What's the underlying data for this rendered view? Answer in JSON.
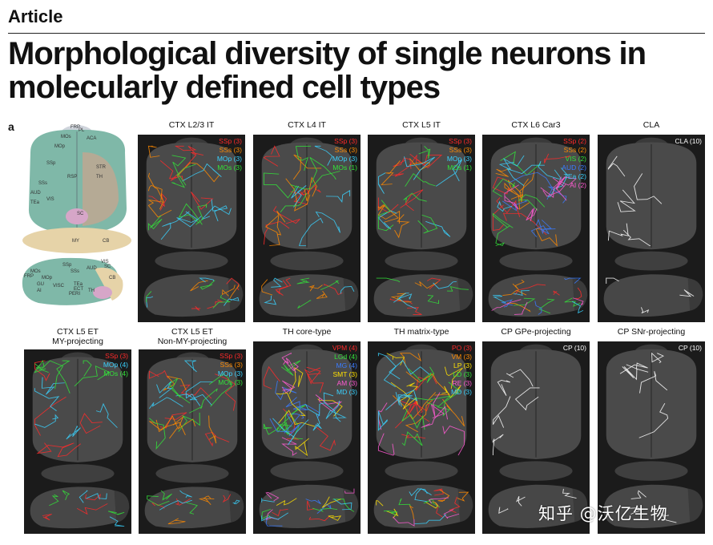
{
  "article_label": "Article",
  "title": "Morphological diversity of single neurons in molecularly defined cell types",
  "panel_label": "a",
  "atlas": {
    "labels": [
      "FRP",
      "PL",
      "ACA",
      "MOs",
      "MOp",
      "SSp",
      "STR",
      "RSP",
      "TH",
      "SSs",
      "AUD",
      "VIS",
      "SC",
      "TEa",
      "CB",
      "MY",
      "SSp",
      "AUD",
      "SSs",
      "MOs",
      "FRP",
      "MOp",
      "GU",
      "VISC",
      "AI",
      "TEa",
      "ECT",
      "PERI",
      "TH",
      "SC",
      "CB",
      "VIS"
    ]
  },
  "panels": [
    {
      "title": "CTX L2/3 IT",
      "legend": [
        {
          "text": "SSp (3)",
          "color": "#ff2a2a"
        },
        {
          "text": "SSs (3)",
          "color": "#ff8a00"
        },
        {
          "text": "MOp (3)",
          "color": "#3ad2ff"
        },
        {
          "text": "MOs (3)",
          "color": "#33e23a"
        }
      ]
    },
    {
      "title": "CTX L4 IT",
      "legend": [
        {
          "text": "SSp (3)",
          "color": "#ff2a2a"
        },
        {
          "text": "SSs (3)",
          "color": "#ff8a00"
        },
        {
          "text": "MOp (3)",
          "color": "#3ad2ff"
        },
        {
          "text": "MOs (1)",
          "color": "#33e23a"
        }
      ]
    },
    {
      "title": "CTX L5 IT",
      "legend": [
        {
          "text": "SSp (3)",
          "color": "#ff2a2a"
        },
        {
          "text": "SSs (3)",
          "color": "#ff8a00"
        },
        {
          "text": "MOp (3)",
          "color": "#3ad2ff"
        },
        {
          "text": "MOs (1)",
          "color": "#33e23a"
        }
      ]
    },
    {
      "title": "CTX L6 Car3",
      "legend": [
        {
          "text": "SSp (2)",
          "color": "#ff2a2a"
        },
        {
          "text": "SSs (2)",
          "color": "#ff8a00"
        },
        {
          "text": "VIS (2)",
          "color": "#33e23a"
        },
        {
          "text": "AUD (2)",
          "color": "#3a7bff"
        },
        {
          "text": "TEa (2)",
          "color": "#3ad2ff"
        },
        {
          "text": "AI (2)",
          "color": "#ff5ad2"
        }
      ]
    },
    {
      "title": "CLA",
      "legend": [
        {
          "text": "CLA (10)",
          "color": "#ffffff"
        }
      ]
    },
    {
      "title": "CTX L5 ET\nMY-projecting",
      "legend": [
        {
          "text": "SSp (3)",
          "color": "#ff2a2a"
        },
        {
          "text": "MOp (4)",
          "color": "#3ad2ff"
        },
        {
          "text": "MOs (4)",
          "color": "#33e23a"
        }
      ]
    },
    {
      "title": "CTX L5 ET\nNon-MY-projecting",
      "legend": [
        {
          "text": "SSp (3)",
          "color": "#ff2a2a"
        },
        {
          "text": "SSs (3)",
          "color": "#ff8a00"
        },
        {
          "text": "MOp (3)",
          "color": "#3ad2ff"
        },
        {
          "text": "MOs (3)",
          "color": "#33e23a"
        }
      ]
    },
    {
      "title": "TH core-type",
      "legend": [
        {
          "text": "VPM (4)",
          "color": "#ff2a2a"
        },
        {
          "text": "LGd (4)",
          "color": "#33e23a"
        },
        {
          "text": "MG (4)",
          "color": "#3a7bff"
        },
        {
          "text": "SMT (3)",
          "color": "#ffe100"
        },
        {
          "text": "AM (3)",
          "color": "#ff5ad2"
        },
        {
          "text": "MD (3)",
          "color": "#3ad2ff"
        }
      ]
    },
    {
      "title": "TH matrix-type",
      "legend": [
        {
          "text": "PO (3)",
          "color": "#ff2a2a"
        },
        {
          "text": "VM (3)",
          "color": "#ff8a00"
        },
        {
          "text": "LP (3)",
          "color": "#ffe100"
        },
        {
          "text": "LD (3)",
          "color": "#33e23a"
        },
        {
          "text": "RE (3)",
          "color": "#ff5ad2"
        },
        {
          "text": "MD (3)",
          "color": "#3ad2ff"
        }
      ]
    },
    {
      "title": "CP GPe-projecting",
      "legend": [
        {
          "text": "CP (10)",
          "color": "#ffffff"
        }
      ]
    },
    {
      "title": "CP SNr-projecting",
      "legend": [
        {
          "text": "CP (10)",
          "color": "#ffffff"
        }
      ]
    }
  ],
  "watermark": "知乎 @沃亿生物"
}
